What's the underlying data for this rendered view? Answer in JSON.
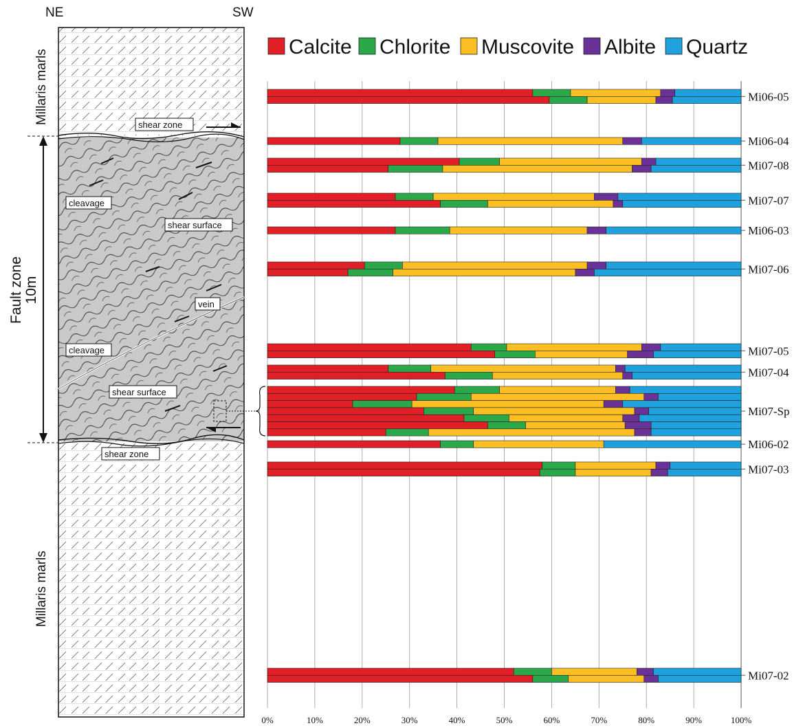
{
  "column": {
    "orientation_left": "NE",
    "orientation_right": "SW",
    "upper_unit": "Millaris marls",
    "lower_unit": "Millaris marls",
    "fault_zone_label": "Fault zone",
    "thickness_label": "10m",
    "callouts": {
      "shear_zone_top": "shear zone",
      "shear_zone_bottom": "shear zone",
      "cleavage_1": "cleavage",
      "cleavage_2": "cleavage",
      "shear_surface_1": "shear surface",
      "shear_surface_2": "shear surface",
      "vein": "vein"
    }
  },
  "chart_data": {
    "type": "bar",
    "orientation": "horizontal",
    "stacked": "percent",
    "xlim": [
      0,
      100
    ],
    "x_ticks": [
      "0%",
      "10%",
      "20%",
      "30%",
      "40%",
      "50%",
      "60%",
      "70%",
      "80%",
      "90%",
      "100%"
    ],
    "grid": "vertical",
    "legend_position": "top",
    "colors": {
      "Calcite": "#e11f26",
      "Chlorite": "#2aa84a",
      "Muscovite": "#fbbf24",
      "Albite": "#6a3296",
      "Quartz": "#1ea1dc"
    },
    "series_order": [
      "Calcite",
      "Chlorite",
      "Muscovite",
      "Albite",
      "Quartz"
    ],
    "samples": [
      {
        "label": "Mi06-05",
        "bars": [
          [
            56,
            8,
            19,
            3,
            14
          ],
          [
            59.5,
            8,
            14.5,
            3.5,
            14.5
          ]
        ]
      },
      {
        "label": "Mi06-04",
        "bars": [
          [
            28,
            8,
            39,
            4,
            21
          ]
        ]
      },
      {
        "label": "Mi07-08",
        "bars": [
          [
            40.5,
            8.5,
            30,
            3,
            18
          ],
          [
            25.5,
            11.5,
            40,
            4,
            19
          ]
        ]
      },
      {
        "label": "Mi07-07",
        "bars": [
          [
            27,
            8,
            34,
            5,
            26
          ],
          [
            36.5,
            10,
            26.5,
            2,
            25
          ]
        ]
      },
      {
        "label": "Mi06-03",
        "bars": [
          [
            27,
            11.5,
            29,
            4,
            28.5
          ]
        ]
      },
      {
        "label": "Mi07-06",
        "bars": [
          [
            20.5,
            8,
            39,
            4,
            28.5
          ],
          [
            17,
            9.5,
            38.5,
            4,
            31
          ]
        ]
      },
      {
        "label": "Mi07-05",
        "bars": [
          [
            43,
            7.5,
            28.5,
            4,
            17
          ],
          [
            48,
            8.5,
            19.5,
            5.5,
            18.5
          ]
        ]
      },
      {
        "label": "Mi07-04",
        "bars": [
          [
            25.5,
            9,
            39,
            2,
            24.5
          ],
          [
            37.5,
            10,
            27.5,
            2,
            23
          ]
        ]
      },
      {
        "label": "Mi07-Sp",
        "bars": [
          [
            39.5,
            9.5,
            24.5,
            3,
            23.5
          ],
          [
            31.5,
            11.5,
            36.5,
            3,
            17.5
          ],
          [
            18,
            12.5,
            40.5,
            4,
            25
          ],
          [
            33,
            10.5,
            34,
            3,
            19.5
          ],
          [
            41.5,
            9.5,
            24,
            3.5,
            21.5
          ],
          [
            46.5,
            8,
            21,
            5.5,
            19
          ],
          [
            25,
            9,
            43.5,
            3.5,
            19
          ]
        ]
      },
      {
        "label": "Mi06-02",
        "bars": [
          [
            36.5,
            7,
            27.5,
            0,
            29
          ]
        ]
      },
      {
        "label": "Mi07-03",
        "bars": [
          [
            58,
            7,
            17,
            3,
            15
          ],
          [
            57.5,
            7.5,
            16,
            3.5,
            15.5
          ]
        ]
      },
      {
        "label": "Mi07-02",
        "bars": [
          [
            52,
            8,
            18,
            3.5,
            18.5
          ],
          [
            56,
            7.5,
            16,
            3,
            17.5
          ]
        ]
      }
    ]
  }
}
